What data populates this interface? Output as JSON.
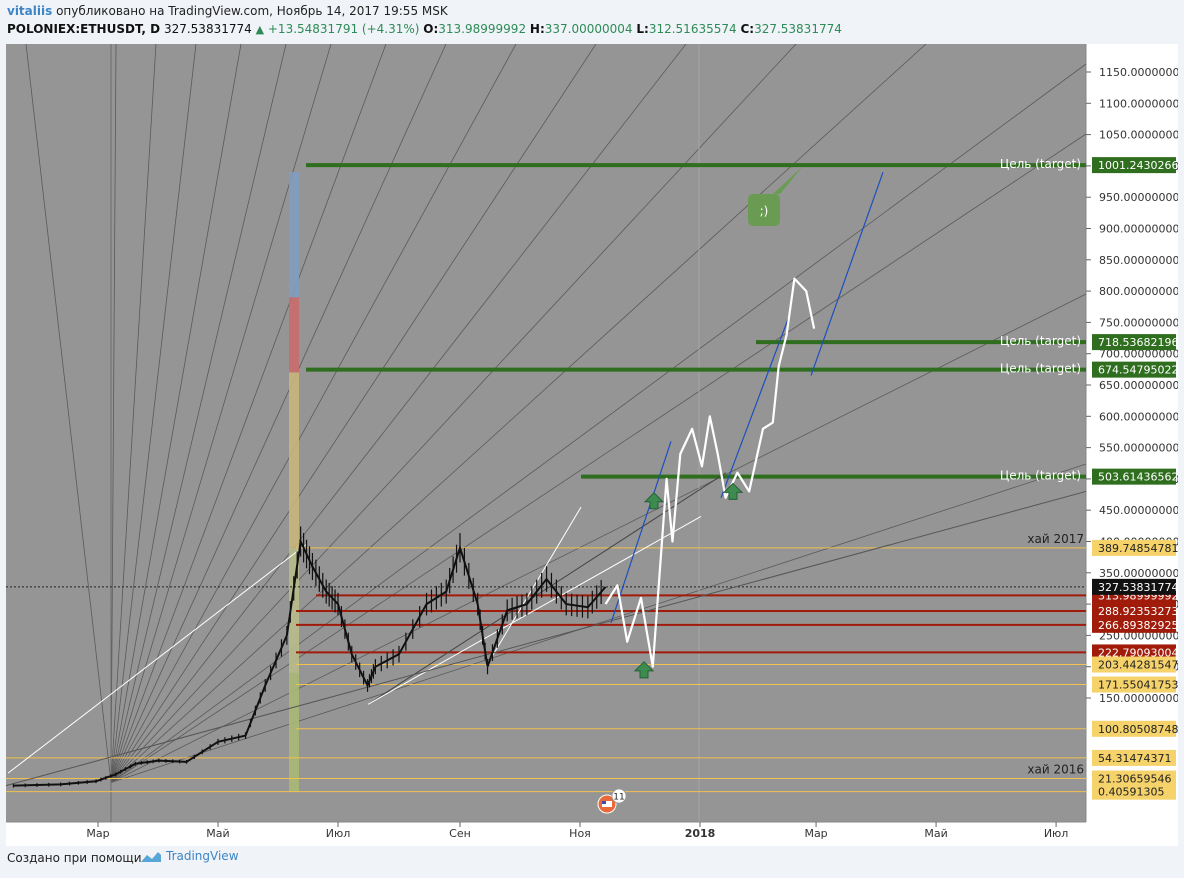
{
  "header": {
    "user": "vitaliis",
    "published": "опубликовано на TradingView.com, Ноябрь 14, 2017 19:55 MSK",
    "symbol": "POLONIEX:ETHUSDT, D",
    "last": "327.53831774",
    "change": "+13.54831791 (+4.31%)",
    "o_label": "O:",
    "o_val": "313.98999992",
    "h_label": "H:",
    "h_val": "337.00000004",
    "l_label": "L:",
    "l_val": "312.51635574",
    "c_label": "C:",
    "c_val": "327.53831774"
  },
  "footer": {
    "made_with": "Создано при помощи",
    "brand": "TradingView"
  },
  "chart_data": {
    "type": "line",
    "symbol": "POLONIEX:ETHUSDT",
    "interval": "D",
    "ylim": [
      0,
      1180
    ],
    "yticks": [
      150,
      200,
      250,
      300,
      350,
      400,
      450,
      500,
      550,
      600,
      650,
      700,
      750,
      800,
      850,
      900,
      950,
      1000,
      1050,
      1100,
      1150
    ],
    "ytick_labels": [
      "150.00000000",
      "200.00000000",
      "250.00000000",
      "300.00000000",
      "350.00000000",
      "400.00000000",
      "450.00000000",
      "500.00000000",
      "550.00000000",
      "600.00000000",
      "650.00000000",
      "700.00000000",
      "750.00000000",
      "800.00000000",
      "850.00000000",
      "900.00000000",
      "950.00000000",
      "1000.00000000",
      "1050.00000000",
      "1100.00000000",
      "1150.00000000"
    ],
    "xticks": [
      "2017-03-01",
      "2017-05-01",
      "2017-07-01",
      "2017-09-01",
      "2017-11-01",
      "2018-01-01",
      "2018-03-01",
      "2018-05-01",
      "2018-07-01"
    ],
    "xtick_labels": [
      "Мар",
      "Май",
      "Июл",
      "Сен",
      "Ноя",
      "2018",
      "Мар",
      "Май",
      "Июл"
    ],
    "xlim": [
      "2017-01-17",
      "2018-07-31"
    ],
    "grid": false,
    "price_series": {
      "name": "ETHUSDT",
      "x": [
        "2017-01-17",
        "2017-02-10",
        "2017-02-28",
        "2017-03-10",
        "2017-03-20",
        "2017-04-01",
        "2017-04-15",
        "2017-05-01",
        "2017-05-15",
        "2017-05-25",
        "2017-06-05",
        "2017-06-12",
        "2017-06-18",
        "2017-06-25",
        "2017-07-01",
        "2017-07-08",
        "2017-07-16",
        "2017-07-20",
        "2017-08-01",
        "2017-08-15",
        "2017-08-25",
        "2017-09-01",
        "2017-09-10",
        "2017-09-15",
        "2017-09-25",
        "2017-10-05",
        "2017-10-15",
        "2017-10-25",
        "2017-11-05",
        "2017-11-14"
      ],
      "y": [
        10,
        12,
        17,
        28,
        45,
        50,
        48,
        80,
        90,
        170,
        250,
        400,
        360,
        320,
        300,
        220,
        170,
        200,
        220,
        300,
        320,
        390,
        300,
        200,
        290,
        300,
        340,
        300,
        295,
        327.54
      ]
    },
    "horizontal_levels": [
      {
        "value": 1001.2430266,
        "label": "1001.24302660",
        "note": "Цель (target)",
        "color": "#2e6e1e"
      },
      {
        "value": 718.53682196,
        "label": "718.53682196",
        "note": "Цель (target)",
        "color": "#2e6e1e"
      },
      {
        "value": 674.54795022,
        "label": "674.54795022",
        "note": "Цель (target)",
        "color": "#2e6e1e"
      },
      {
        "value": 503.61436562,
        "label": "503.61436562",
        "note": "Цель (target)",
        "color": "#2e6e1e"
      },
      {
        "value": 389.74854781,
        "label": "389.74854781",
        "note": "хай 2017",
        "color": "#f2c14e"
      },
      {
        "value": 313.98999992,
        "label": "313.98999992",
        "note": "",
        "color": "#a11b0a"
      },
      {
        "value": 288.92353273,
        "label": "288.92353273",
        "note": "",
        "color": "#a11b0a"
      },
      {
        "value": 266.89382925,
        "label": "266.89382925",
        "note": "",
        "color": "#a11b0a"
      },
      {
        "value": 222.79093004,
        "label": "222.79093004",
        "note": "",
        "color": "#a11b0a"
      },
      {
        "value": 203.44281547,
        "label": "203.44281547",
        "note": "",
        "color": "#f2c14e"
      },
      {
        "value": 171.55041753,
        "label": "171.55041753",
        "note": "",
        "color": "#f2c14e"
      },
      {
        "value": 100.80508748,
        "label": "100.80508748",
        "note": "",
        "color": "#f2c14e"
      },
      {
        "value": 54.31474371,
        "label": "54.31474371",
        "note": "",
        "color": "#f2c14e"
      },
      {
        "value": 21.30659546,
        "label": "21.30659546",
        "note": "хай 2016",
        "color": "#f2c14e"
      },
      {
        "value": 0.40591305,
        "label": "0.40591305",
        "note": "",
        "color": "#f2c14e"
      }
    ],
    "current_price": {
      "value": 327.53831774,
      "label": "327.53831774"
    },
    "projection_path": {
      "name": "forecast",
      "x": [
        "2017-11-14",
        "2017-11-20",
        "2017-11-25",
        "2017-12-02",
        "2017-12-08",
        "2017-12-15",
        "2017-12-18",
        "2017-12-22",
        "2017-12-28",
        "2018-01-02",
        "2018-01-06",
        "2018-01-10",
        "2018-01-14",
        "2018-01-20",
        "2018-01-26",
        "2018-02-02",
        "2018-02-07",
        "2018-02-10",
        "2018-02-14",
        "2018-02-18",
        "2018-02-24",
        "2018-02-28"
      ],
      "y": [
        300,
        330,
        240,
        310,
        200,
        500,
        400,
        540,
        580,
        520,
        600,
        540,
        470,
        510,
        480,
        580,
        590,
        680,
        730,
        820,
        800,
        740
      ],
      "color": "#ffffff"
    },
    "annotations": [
      {
        "text": ";)",
        "color": "#6a9b52"
      },
      {
        "text": "хай 2017"
      },
      {
        "text": "хай 2016"
      }
    ],
    "event_badge": "11"
  }
}
